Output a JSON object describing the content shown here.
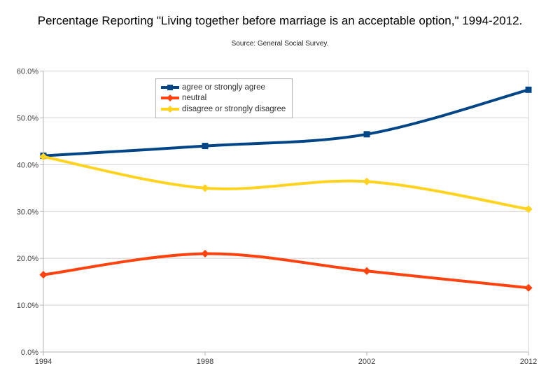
{
  "chart_data": {
    "type": "line",
    "smooth": true,
    "title": "Percentage Reporting \"Living together before marriage is an acceptable option,\" 1994-2012.",
    "subtitle": "Source: General Social Survey.",
    "xlabel": "",
    "ylabel": "",
    "categories": [
      "1994",
      "1998",
      "2002",
      "2012"
    ],
    "series": [
      {
        "name": "agree or strongly agree",
        "color": "#004586",
        "marker": "square",
        "values": [
          41.9,
          44.0,
          46.5,
          56.0
        ]
      },
      {
        "name": "neutral",
        "color": "#ff420e",
        "marker": "diamond",
        "values": [
          16.5,
          21.0,
          17.3,
          13.7
        ]
      },
      {
        "name": "disagree or strongly disagree",
        "color": "#ffd320",
        "marker": "diamond",
        "values": [
          41.7,
          35.0,
          36.4,
          30.5
        ]
      }
    ],
    "ylim": [
      0,
      60
    ],
    "y_ticks": [
      {
        "value": 60,
        "label": "60.0%"
      },
      {
        "value": 50,
        "label": "50.0%"
      },
      {
        "value": 40,
        "label": "40.0%"
      },
      {
        "value": 30,
        "label": "30.0%"
      },
      {
        "value": 20,
        "label": "20.0%"
      },
      {
        "value": 10,
        "label": "10.0%"
      },
      {
        "value": 0,
        "label": "0.0%"
      }
    ],
    "grid": "horizontal",
    "legend_position": "inside-top-left"
  },
  "colors": {
    "background": "#ffffff",
    "grid": "#cfcfcf",
    "axis": "#b3b3b3",
    "tick_text": "#3d3d3d",
    "legend_border": "#b3b3b3"
  }
}
